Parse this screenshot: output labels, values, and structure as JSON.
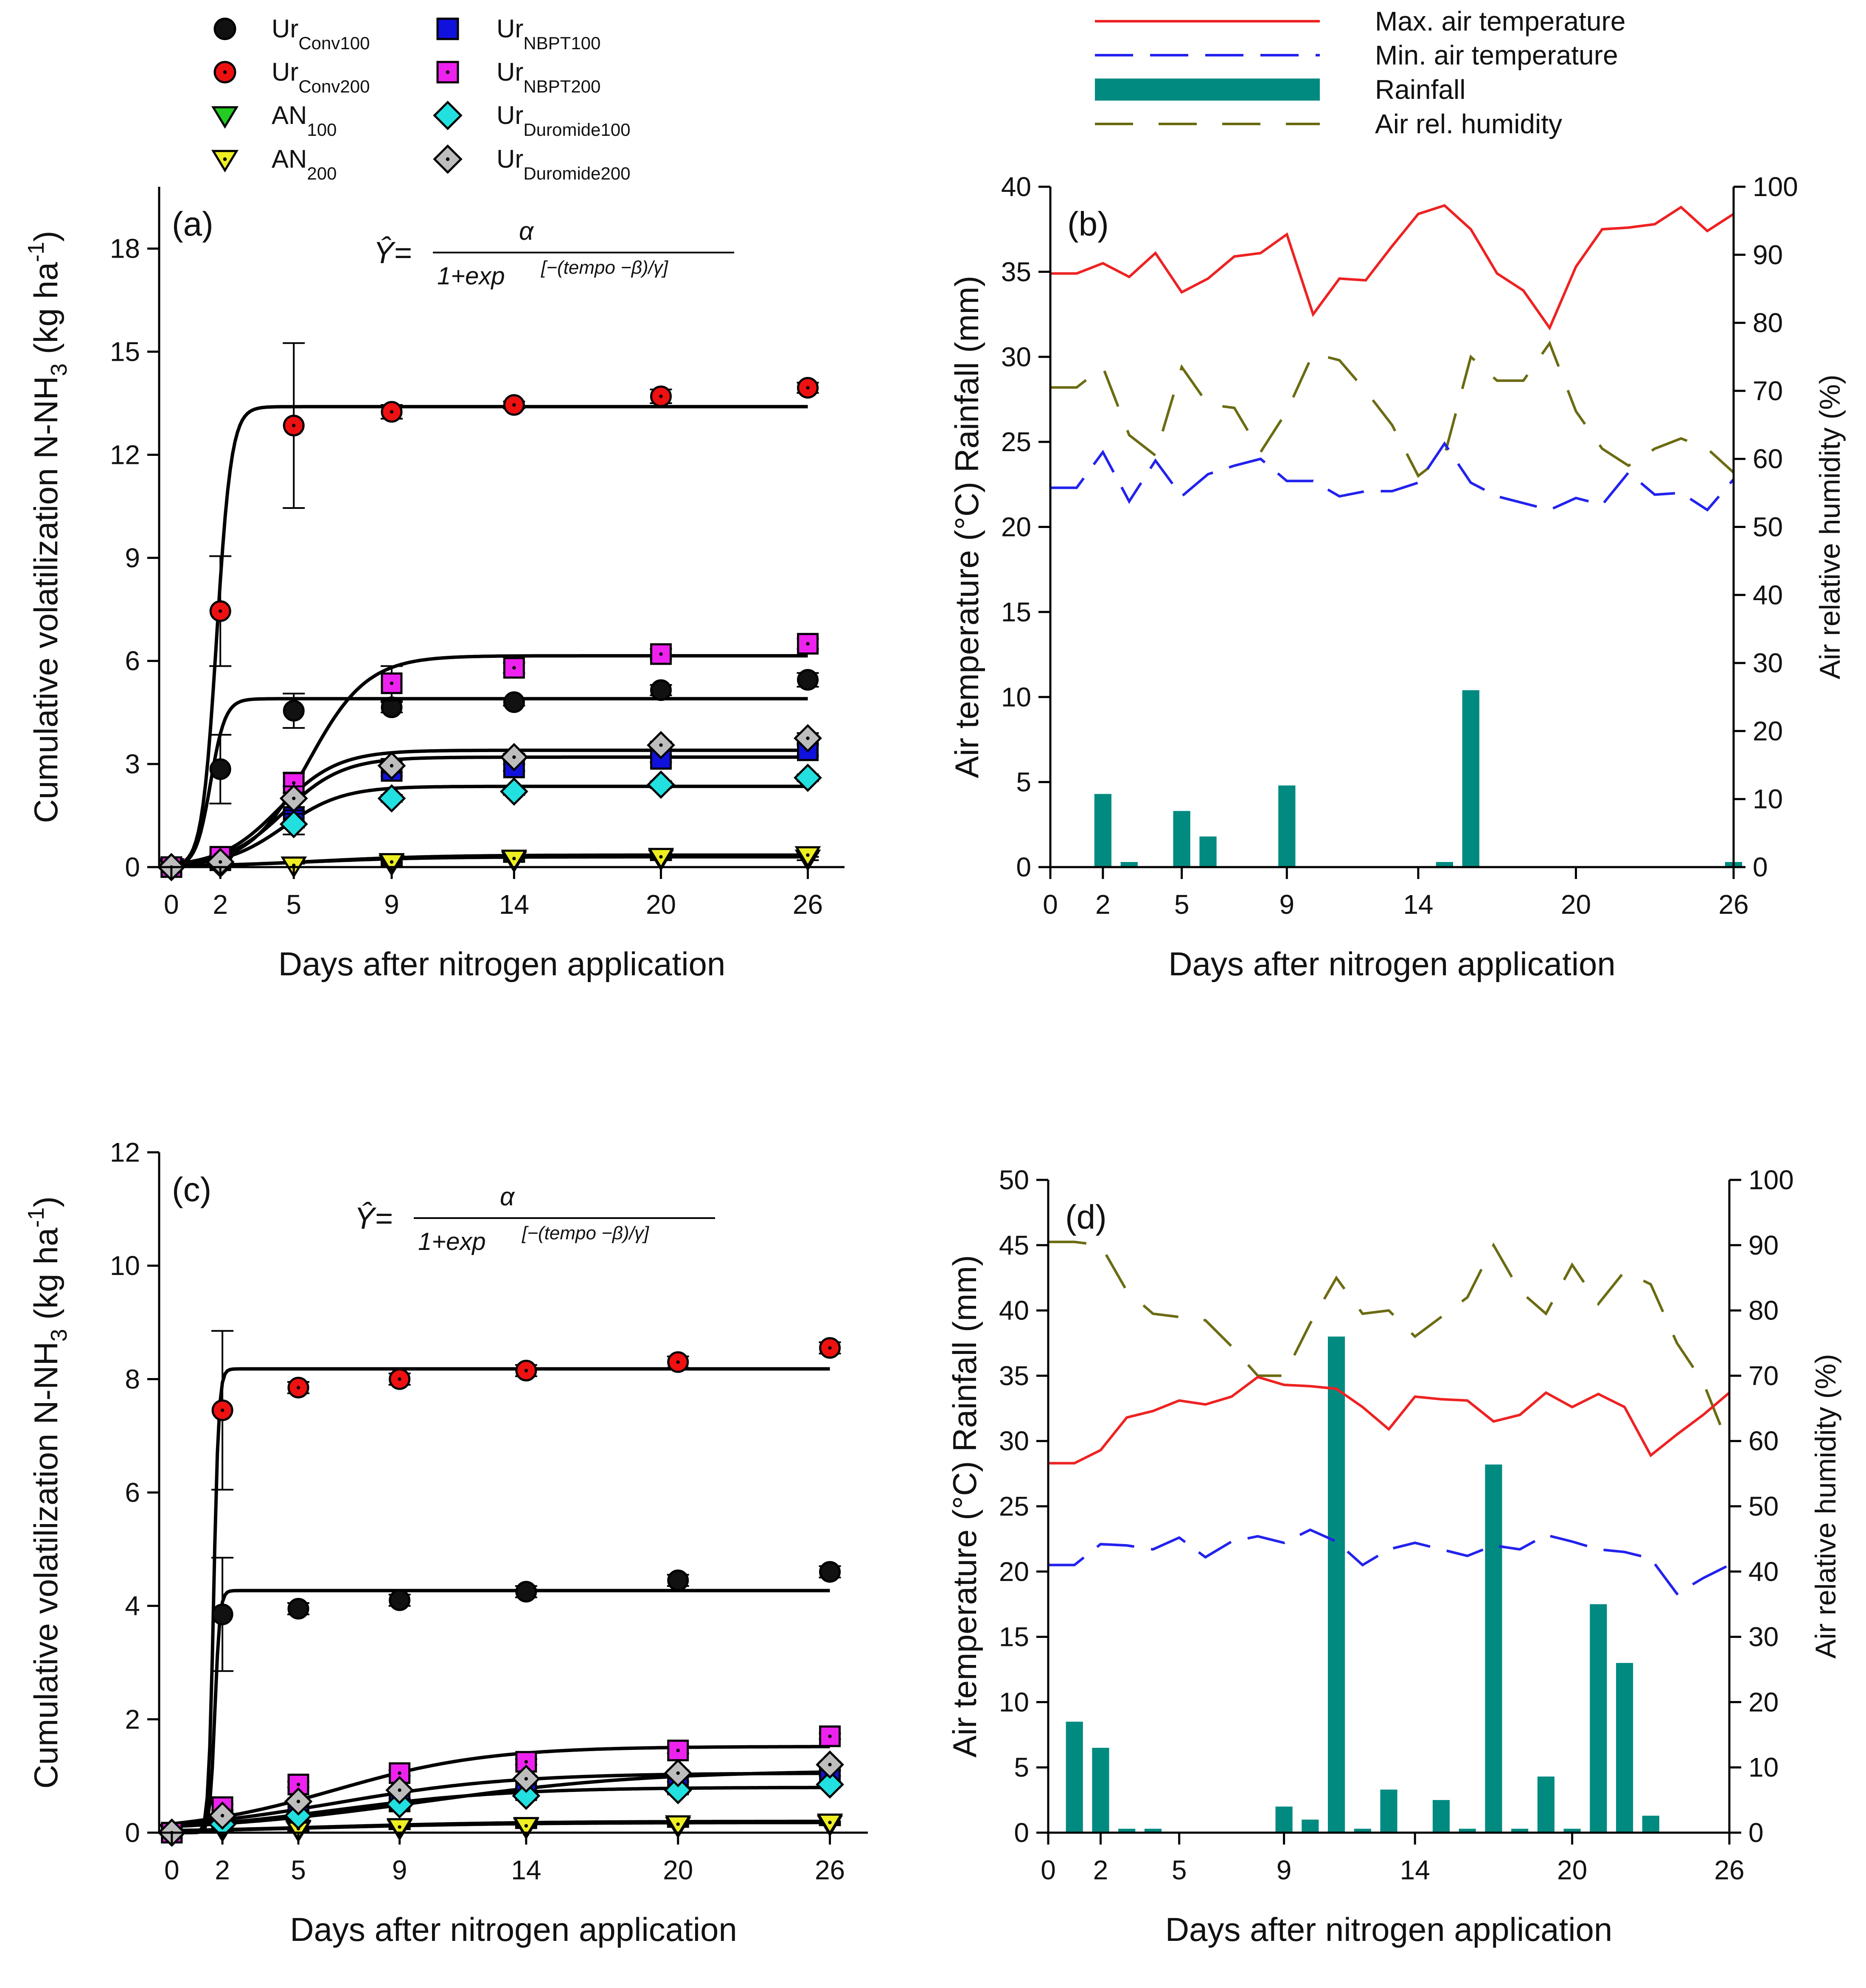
{
  "colors": {
    "max_temp": "#ee2222",
    "min_temp": "#2222ee",
    "rainfall": "#008a80",
    "humidity": "#6b6b12",
    "fit_line": "#000000"
  },
  "legend_a": [
    {
      "base": "Ur",
      "sub": "Conv100",
      "marker": "circle",
      "fill": "#111111",
      "dot": false
    },
    {
      "base": "Ur",
      "sub": "Conv200",
      "marker": "circle",
      "fill": "#ee1111",
      "dot": true
    },
    {
      "base": "AN",
      "sub": "100",
      "marker": "tri",
      "fill": "#22cc22",
      "dot": false
    },
    {
      "base": "AN",
      "sub": "200",
      "marker": "tri",
      "fill": "#eeee22",
      "dot": true
    },
    {
      "base": "Ur",
      "sub": "NBPT100",
      "marker": "square",
      "fill": "#1111dd",
      "dot": false
    },
    {
      "base": "Ur",
      "sub": "NBPT200",
      "marker": "square",
      "fill": "#ee22ee",
      "dot": true
    },
    {
      "base": "Ur",
      "sub": "Duromide100",
      "marker": "diamond",
      "fill": "#22e0e0",
      "dot": false
    },
    {
      "base": "Ur",
      "sub": "Duromide200",
      "marker": "diamond",
      "fill": "#bdbdbd",
      "dot": true
    }
  ],
  "legend_b": [
    {
      "label": "Max. air temperature",
      "style": "max"
    },
    {
      "label": "Min. air temperature",
      "style": "min"
    },
    {
      "label": "Rainfall",
      "style": "rain"
    },
    {
      "label": "Air rel. humidity",
      "style": "hum"
    }
  ],
  "equation": {
    "lhs": "Ŷ=",
    "numerator": "α",
    "denominator_base": "1+exp",
    "denominator_exp": "[−(tempo  −β)/γ]"
  },
  "chart_data": [
    {
      "id": "a",
      "panel_label": "(a)",
      "type": "scatter",
      "xlabel": "Days after nitrogen application",
      "ylabel": "Cumulative volatilization N-NH",
      "ylabel_sub": "3",
      "ylabel_unit": " (kg ha",
      "ylabel_sup": "-1",
      "ylabel_close": ")",
      "xlim": [
        -0.5,
        27.5
      ],
      "ylim": [
        0,
        19.8
      ],
      "x_ticks": [
        0,
        2,
        5,
        9,
        14,
        20,
        26
      ],
      "y_ticks": [
        0,
        3,
        6,
        9,
        12,
        15,
        18
      ],
      "x": [
        0,
        2,
        5,
        9,
        14,
        20,
        26
      ],
      "series": [
        {
          "name": "UrConv100",
          "values": [
            0,
            2.85,
            4.55,
            4.65,
            4.8,
            5.15,
            5.45
          ],
          "errors": [
            0,
            1.0,
            0.5,
            0.15,
            0.1,
            0.15,
            0.2
          ],
          "fit": {
            "alpha": 4.9,
            "beta": 1.6,
            "gamma": 0.3
          }
        },
        {
          "name": "UrConv200",
          "values": [
            0,
            7.45,
            12.85,
            13.25,
            13.45,
            13.7,
            13.95
          ],
          "errors": [
            0,
            1.6,
            2.4,
            0.2,
            0.1,
            0.2,
            0.15
          ],
          "fit": {
            "alpha": 13.4,
            "beta": 1.85,
            "gamma": 0.3
          }
        },
        {
          "name": "AN100",
          "values": [
            0,
            0.05,
            0.05,
            0.1,
            0.2,
            0.25,
            0.25
          ],
          "errors": [
            0,
            0,
            0.05,
            0.05,
            0.05,
            0.05,
            0.05
          ],
          "fit": {
            "alpha": 0.3,
            "beta": 5.5,
            "gamma": 2.5
          }
        },
        {
          "name": "AN200",
          "values": [
            0,
            0.05,
            0.05,
            0.15,
            0.25,
            0.3,
            0.35
          ],
          "errors": [
            0,
            0,
            0.05,
            0.05,
            0.05,
            0.05,
            0.05
          ],
          "fit": {
            "alpha": 0.35,
            "beta": 6.0,
            "gamma": 2.5
          }
        },
        {
          "name": "UrNBPT100",
          "values": [
            0,
            0.2,
            1.45,
            2.8,
            2.9,
            3.15,
            3.4
          ],
          "errors": [
            0,
            0.05,
            0.3,
            0.15,
            0.1,
            0.1,
            0.15
          ],
          "fit": {
            "alpha": 3.2,
            "beta": 4.6,
            "gamma": 1.2
          }
        },
        {
          "name": "UrNBPT200",
          "values": [
            0,
            0.3,
            2.45,
            5.35,
            5.8,
            6.2,
            6.5
          ],
          "errors": [
            0,
            0.05,
            0.3,
            0.5,
            0.15,
            0.15,
            0.15
          ],
          "fit": {
            "alpha": 6.15,
            "beta": 5.6,
            "gamma": 1.2
          }
        },
        {
          "name": "UrDuromide100",
          "values": [
            0,
            0.1,
            1.25,
            2.0,
            2.2,
            2.4,
            2.6
          ],
          "errors": [
            0,
            0.05,
            0.3,
            0.1,
            0.1,
            0.1,
            0.1
          ],
          "fit": {
            "alpha": 2.35,
            "beta": 4.6,
            "gamma": 1.2
          }
        },
        {
          "name": "UrDuromide200",
          "values": [
            0,
            0.15,
            2.0,
            2.95,
            3.2,
            3.55,
            3.75
          ],
          "errors": [
            0,
            0.05,
            0.35,
            0.2,
            0.1,
            0.1,
            0.15
          ],
          "fit": {
            "alpha": 3.4,
            "beta": 4.4,
            "gamma": 1.2
          }
        }
      ]
    },
    {
      "id": "b",
      "panel_label": "(b)",
      "type": "bar+line",
      "xlabel": "Days after nitrogen application",
      "ylabel_left": "Air temperature (°C) Rainfall (mm)",
      "ylabel_right": "Air relative humidity (%)",
      "xlim": [
        0,
        26
      ],
      "ylim_left": [
        0,
        40
      ],
      "ylim_right": [
        0,
        100
      ],
      "x_ticks": [
        0,
        2,
        5,
        9,
        14,
        20,
        26
      ],
      "y_ticks_left": [
        0,
        5,
        10,
        15,
        20,
        25,
        30,
        35,
        40
      ],
      "y_ticks_right": [
        0,
        10,
        20,
        30,
        40,
        50,
        60,
        70,
        80,
        90,
        100
      ],
      "days": [
        0,
        1,
        2,
        3,
        4,
        5,
        6,
        7,
        8,
        9,
        10,
        11,
        12,
        13,
        14,
        15,
        16,
        17,
        18,
        19,
        20,
        21,
        22,
        23,
        24,
        25,
        26
      ],
      "max_temp": [
        34.9,
        34.9,
        35.5,
        34.7,
        36.1,
        33.8,
        34.6,
        35.9,
        36.1,
        37.2,
        32.5,
        34.6,
        34.5,
        36.5,
        38.4,
        38.9,
        37.5,
        34.9,
        33.9,
        31.7,
        35.3,
        37.5,
        37.6,
        37.8,
        38.8,
        37.4,
        38.4
      ],
      "min_temp": [
        22.3,
        22.3,
        24.4,
        21.5,
        23.9,
        21.8,
        23.1,
        23.6,
        24.0,
        22.7,
        22.7,
        21.8,
        22.1,
        22.1,
        22.6,
        24.9,
        22.6,
        21.8,
        21.4,
        21.0,
        21.7,
        21.3,
        23.2,
        21.9,
        22.0,
        21.0,
        22.8
      ],
      "humidity": [
        70.5,
        70.5,
        73.5,
        63.5,
        60.5,
        73.5,
        68.0,
        67.5,
        61.0,
        67.0,
        75.5,
        74.5,
        70.0,
        65.0,
        57.5,
        60.5,
        75.0,
        71.5,
        71.5,
        77.0,
        67.0,
        61.5,
        59.0,
        61.5,
        63.0,
        61.5,
        58.0
      ],
      "rainfall": [
        {
          "day": 2,
          "value": 4.3
        },
        {
          "day": 3,
          "value": 0.3
        },
        {
          "day": 5,
          "value": 3.3
        },
        {
          "day": 6,
          "value": 1.8
        },
        {
          "day": 9,
          "value": 4.8
        },
        {
          "day": 15,
          "value": 0.3
        },
        {
          "day": 16,
          "value": 10.4
        },
        {
          "day": 26,
          "value": 0.3
        }
      ]
    },
    {
      "id": "c",
      "panel_label": "(c)",
      "type": "scatter",
      "xlabel": "Days after nitrogen application",
      "ylabel": "Cumulative volatilization N-NH",
      "ylabel_sub": "3",
      "ylabel_unit": " (kg ha",
      "ylabel_sup": "-1",
      "ylabel_close": ")",
      "xlim": [
        -0.5,
        27.5
      ],
      "ylim": [
        0,
        12
      ],
      "x_ticks": [
        0,
        2,
        5,
        9,
        14,
        20,
        26
      ],
      "y_ticks": [
        0,
        2,
        4,
        6,
        8,
        10,
        12
      ],
      "x": [
        0,
        2,
        5,
        9,
        14,
        20,
        26
      ],
      "series": [
        {
          "name": "UrConv100",
          "values": [
            0,
            3.85,
            3.95,
            4.1,
            4.25,
            4.45,
            4.6
          ],
          "errors": [
            0,
            1.0,
            0.1,
            0.1,
            0.1,
            0.1,
            0.1
          ],
          "fit": {
            "alpha": 4.27,
            "beta": 1.7,
            "gamma": 0.1
          }
        },
        {
          "name": "UrConv200",
          "values": [
            0,
            7.45,
            7.85,
            8.0,
            8.15,
            8.3,
            8.55
          ],
          "errors": [
            0,
            1.4,
            0.1,
            0.1,
            0.1,
            0.1,
            0.1
          ],
          "fit": {
            "alpha": 8.18,
            "beta": 1.65,
            "gamma": 0.1
          }
        },
        {
          "name": "AN100",
          "values": [
            0,
            0.05,
            0.05,
            0.08,
            0.1,
            0.12,
            0.15
          ],
          "errors": [
            0,
            0.02,
            0.02,
            0.02,
            0.02,
            0.02,
            0.02
          ],
          "fit": {
            "alpha": 0.18,
            "beta": 6.0,
            "gamma": 4.0
          }
        },
        {
          "name": "AN200",
          "values": [
            0,
            0.07,
            0.07,
            0.1,
            0.12,
            0.15,
            0.18
          ],
          "errors": [
            0,
            0.02,
            0.02,
            0.02,
            0.02,
            0.02,
            0.02
          ],
          "fit": {
            "alpha": 0.2,
            "beta": 6.0,
            "gamma": 4.0
          }
        },
        {
          "name": "UrNBPT100",
          "values": [
            0,
            0.2,
            0.35,
            0.55,
            0.75,
            0.85,
            1.05
          ],
          "errors": [
            0,
            0.05,
            0.05,
            0.05,
            0.05,
            0.05,
            0.05
          ],
          "fit": {
            "alpha": 1.1,
            "beta": 10.0,
            "gamma": 4.5
          }
        },
        {
          "name": "UrNBPT200",
          "values": [
            0,
            0.45,
            0.85,
            1.05,
            1.25,
            1.45,
            1.7
          ],
          "errors": [
            0,
            0.05,
            0.05,
            0.05,
            0.05,
            0.05,
            0.05
          ],
          "fit": {
            "alpha": 1.52,
            "beta": 6.5,
            "gamma": 3.0
          }
        },
        {
          "name": "UrDuromide100",
          "values": [
            0,
            0.15,
            0.3,
            0.5,
            0.65,
            0.75,
            0.85
          ],
          "errors": [
            0,
            0.05,
            0.05,
            0.05,
            0.05,
            0.05,
            0.05
          ],
          "fit": {
            "alpha": 0.8,
            "beta": 6.5,
            "gamma": 3.5
          }
        },
        {
          "name": "UrDuromide200",
          "values": [
            0,
            0.3,
            0.55,
            0.75,
            0.95,
            1.05,
            1.2
          ],
          "errors": [
            0,
            0.05,
            0.05,
            0.05,
            0.05,
            0.05,
            0.05
          ],
          "fit": {
            "alpha": 1.05,
            "beta": 6.5,
            "gamma": 3.5
          }
        }
      ]
    },
    {
      "id": "d",
      "panel_label": "(d)",
      "type": "bar+line",
      "xlabel": "Days after nitrogen application",
      "ylabel_left": "Air temperature (°C) Rainfall (mm)",
      "ylabel_right": "Air relative humidity (%)",
      "xlim": [
        0,
        26
      ],
      "ylim_left": [
        0,
        50
      ],
      "ylim_right": [
        0,
        100
      ],
      "x_ticks": [
        0,
        2,
        5,
        9,
        14,
        20,
        26
      ],
      "y_ticks_left": [
        0,
        5,
        10,
        15,
        20,
        25,
        30,
        35,
        40,
        45,
        50
      ],
      "y_ticks_right": [
        0,
        10,
        20,
        30,
        40,
        50,
        60,
        70,
        80,
        90,
        100
      ],
      "days": [
        0,
        1,
        2,
        3,
        4,
        5,
        6,
        7,
        8,
        9,
        10,
        11,
        12,
        13,
        14,
        15,
        16,
        17,
        18,
        19,
        20,
        21,
        22,
        23,
        24,
        25,
        26
      ],
      "max_temp": [
        28.3,
        28.3,
        29.3,
        31.8,
        32.3,
        33.1,
        32.8,
        33.4,
        34.9,
        34.3,
        34.2,
        34.0,
        32.6,
        30.9,
        33.4,
        33.2,
        33.1,
        31.5,
        32.0,
        33.7,
        32.6,
        33.6,
        32.6,
        28.9,
        30.5,
        32.0,
        33.7
      ],
      "min_temp": [
        20.5,
        20.5,
        22.1,
        22.0,
        21.7,
        22.6,
        21.1,
        22.3,
        22.7,
        22.2,
        23.2,
        22.3,
        20.5,
        21.7,
        22.2,
        21.7,
        21.2,
        22.0,
        21.7,
        22.8,
        22.3,
        21.7,
        21.5,
        21.0,
        18.3,
        19.5,
        20.5
      ],
      "humidity": [
        90.5,
        90.5,
        90.0,
        83.0,
        79.5,
        79.0,
        78.5,
        74.5,
        70.0,
        70.0,
        78.0,
        85.0,
        79.5,
        80.0,
        76.0,
        79.0,
        82.0,
        90.0,
        83.0,
        79.5,
        87.0,
        81.0,
        86.0,
        84.0,
        75.0,
        69.0,
        59.0
      ],
      "rainfall": [
        {
          "day": 1,
          "value": 8.5
        },
        {
          "day": 2,
          "value": 6.5
        },
        {
          "day": 3,
          "value": 0.3
        },
        {
          "day": 4,
          "value": 0.3
        },
        {
          "day": 9,
          "value": 2.0
        },
        {
          "day": 10,
          "value": 1.0
        },
        {
          "day": 11,
          "value": 38.0
        },
        {
          "day": 12,
          "value": 0.3
        },
        {
          "day": 13,
          "value": 3.3
        },
        {
          "day": 15,
          "value": 2.5
        },
        {
          "day": 16,
          "value": 0.3
        },
        {
          "day": 17,
          "value": 28.2
        },
        {
          "day": 18,
          "value": 0.3
        },
        {
          "day": 19,
          "value": 4.3
        },
        {
          "day": 20,
          "value": 0.3
        },
        {
          "day": 21,
          "value": 17.5
        },
        {
          "day": 22,
          "value": 13.0
        },
        {
          "day": 23,
          "value": 1.3
        }
      ]
    }
  ]
}
